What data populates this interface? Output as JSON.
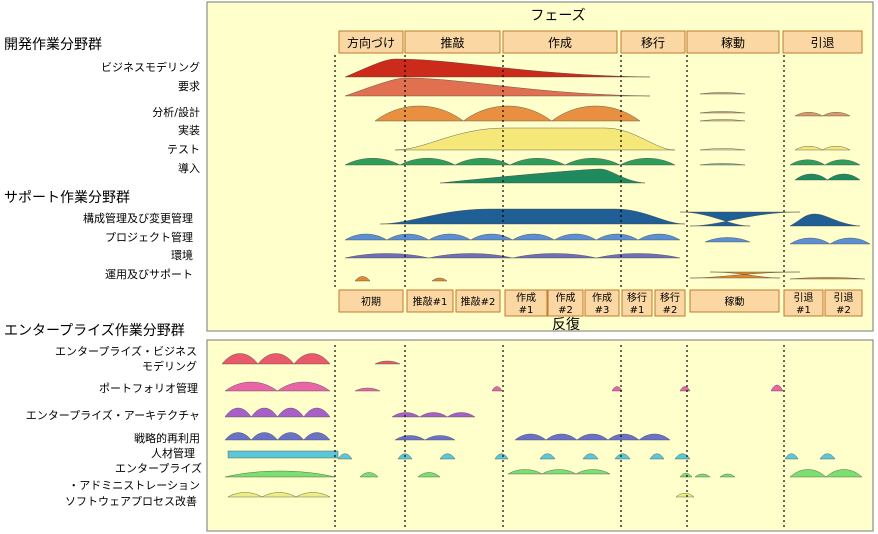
{
  "top_section": {
    "header": "フェーズ",
    "phases": [
      "方向づけ",
      "推敲",
      "作成",
      "移行",
      "稼動",
      "引退"
    ],
    "group_title": "開発作業分野群",
    "disciplines": [
      "ビジネスモデリング",
      "要求",
      "分析/設計",
      "実装",
      "テスト",
      "導入"
    ],
    "support_title": "サポート作業分野群",
    "support_disciplines": [
      "構成管理及び変更管理",
      "プロジェクト管理",
      "環境",
      "運用及びサポート"
    ],
    "iterations": [
      [
        "初期"
      ],
      [
        "推敲#1"
      ],
      [
        "推敲#2"
      ],
      [
        "作成",
        "#1"
      ],
      [
        "作成",
        "#2"
      ],
      [
        "作成",
        "#3"
      ],
      [
        "移行",
        "#1"
      ],
      [
        "移行",
        "#2"
      ],
      [
        "稼動"
      ],
      [
        "引退",
        "#1"
      ],
      [
        "引退",
        "#2"
      ]
    ],
    "iterations_label": "反復"
  },
  "bottom_section": {
    "group_title": "エンタープライズ作業分野群",
    "disciplines": [
      [
        "エンタープライズ・ビジネス",
        "モデリング"
      ],
      [
        "ポートフォリオ管理"
      ],
      [
        "エンタープライズ・アーキテクチャ"
      ],
      [
        "戦略的再利用"
      ],
      [
        "人材管理"
      ],
      [
        "エンタープライズ"
      ],
      [
        "・アドミニストレーション"
      ],
      [
        "ソフトウェアプロセス改善"
      ]
    ]
  },
  "colors": {
    "panel_bg": "#FFFFCC",
    "phase_box": "#FBD7A3",
    "phase_border": "#C07A2C",
    "business_modeling": "#CC2A1A",
    "requirements": "#E0704F",
    "analysis_design": "#E89040",
    "implementation": "#F5E878",
    "test": "#2E9E5A",
    "deployment": "#1E8A5E",
    "config_mgmt": "#1F5F95",
    "project_mgmt": "#5B8FD1",
    "environment": "#6E6FB5",
    "operations": "#E08A2C",
    "ent_business": "#E85A6A",
    "portfolio": "#E866A8",
    "ent_architecture": "#A860C8",
    "strategic_reuse": "#6A72C8",
    "people_mgmt": "#5AC8D8",
    "ent_admin": "#7AE070",
    "process_improvement": "#EEEE80"
  }
}
